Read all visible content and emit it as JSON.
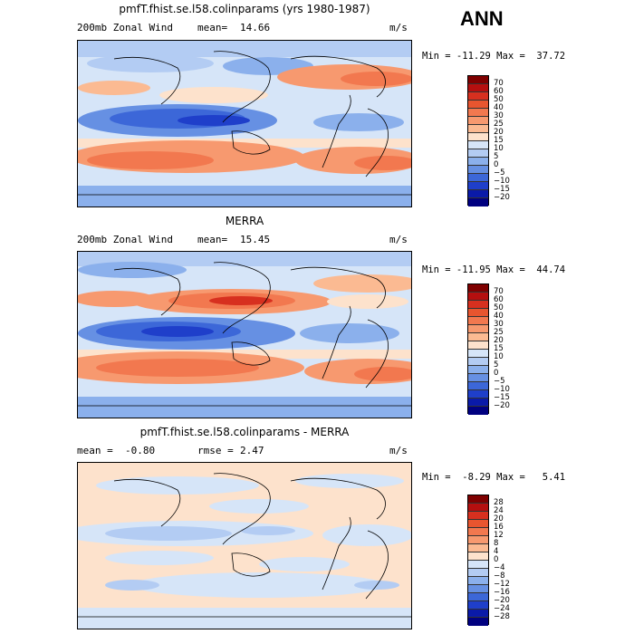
{
  "season": "ANN",
  "panels": [
    {
      "title": "pmfT.fhist.se.l58.colinparams (yrs 1980-1987)",
      "left_label": "200mb Zonal Wind",
      "stat_label": "mean=",
      "stat_value": "14.66",
      "units": "m/s",
      "minmax": "Min = -11.29 Max =  37.72",
      "colorbar_labels": [
        "70",
        "60",
        "50",
        "40",
        "30",
        "25",
        "20",
        "15",
        "10",
        "5",
        "0",
        "−5",
        "−10",
        "−15",
        "−20"
      ]
    },
    {
      "title": "MERRA",
      "left_label": "200mb Zonal Wind",
      "stat_label": "mean=",
      "stat_value": "15.45",
      "units": "m/s",
      "minmax": "Min = -11.95 Max =  44.74",
      "colorbar_labels": [
        "70",
        "60",
        "50",
        "40",
        "30",
        "25",
        "20",
        "15",
        "10",
        "5",
        "0",
        "−5",
        "−10",
        "−15",
        "−20"
      ]
    },
    {
      "title": "pmfT.fhist.se.l58.colinparams - MERRA",
      "left_label": "mean =  -0.80",
      "stat_label": "rmse =",
      "stat_value": "2.47",
      "units": "m/s",
      "minmax": "Min =  -8.29 Max =   5.41",
      "colorbar_labels": [
        "28",
        "24",
        "20",
        "16",
        "12",
        "8",
        "4",
        "0",
        "−4",
        "−8",
        "−12",
        "−16",
        "−20",
        "−24",
        "−28"
      ]
    }
  ],
  "colors": {
    "wind_scale": [
      "#7f0000",
      "#b50f0f",
      "#d7301f",
      "#e8552f",
      "#f2784f",
      "#f7996f",
      "#fbba92",
      "#fde2cc",
      "#d6e5f8",
      "#b3ccf3",
      "#8bb0ec",
      "#6690e3",
      "#3c67d8",
      "#1f3fca",
      "#0a1aa9",
      "#000080"
    ],
    "diff_scale": [
      "#7f0000",
      "#b50f0f",
      "#d7301f",
      "#e8552f",
      "#f2784f",
      "#f7996f",
      "#fbba92",
      "#fde2cc",
      "#d6e5f8",
      "#b3ccf3",
      "#8bb0ec",
      "#6690e3",
      "#3c67d8",
      "#1f3fca",
      "#0a1aa9",
      "#000080"
    ]
  }
}
